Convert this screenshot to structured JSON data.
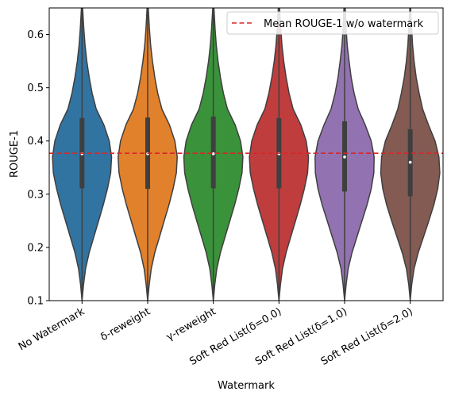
{
  "chart_data": {
    "type": "violin",
    "xlabel": "Watermark",
    "ylabel": "ROUGE-1",
    "ylim": [
      0.1,
      0.65
    ],
    "yticks": [
      0.1,
      0.2,
      0.3,
      0.4,
      0.5,
      0.6
    ],
    "ytick_labels": [
      "0.1",
      "0.2",
      "0.3",
      "0.4",
      "0.5",
      "0.6"
    ],
    "legend": {
      "placement": "top-right",
      "label": "Mean ROUGE-1 w/o watermark"
    },
    "reference_line": {
      "y": 0.377,
      "color": "#d62728",
      "style": "dashed"
    },
    "categories": [
      "No Watermark",
      "δ-reweight",
      "γ-reweight",
      "Soft Red List(δ=0.0)",
      "Soft Red List(δ=1.0)",
      "Soft Red List(δ=2.0)"
    ],
    "series": [
      {
        "label": "No Watermark",
        "color": "#3274a1",
        "median": 0.376,
        "q1": 0.311,
        "q3": 0.443,
        "min": 0.1,
        "max": 0.67,
        "density_y": [
          0.1,
          0.13,
          0.16,
          0.19,
          0.22,
          0.25,
          0.28,
          0.31,
          0.34,
          0.37,
          0.4,
          0.43,
          0.46,
          0.49,
          0.52,
          0.55,
          0.58,
          0.61,
          0.64,
          0.67
        ],
        "density_w": [
          0.0,
          0.05,
          0.12,
          0.24,
          0.4,
          0.56,
          0.72,
          0.86,
          0.97,
          1.0,
          0.92,
          0.74,
          0.48,
          0.34,
          0.24,
          0.16,
          0.1,
          0.06,
          0.03,
          0.0
        ]
      },
      {
        "label": "δ-reweight",
        "color": "#e1812c",
        "median": 0.376,
        "q1": 0.31,
        "q3": 0.444,
        "min": 0.1,
        "max": 0.67,
        "density_y": [
          0.1,
          0.13,
          0.16,
          0.19,
          0.22,
          0.25,
          0.28,
          0.31,
          0.34,
          0.37,
          0.4,
          0.43,
          0.46,
          0.49,
          0.52,
          0.55,
          0.58,
          0.61,
          0.64,
          0.67
        ],
        "density_w": [
          0.0,
          0.05,
          0.12,
          0.24,
          0.4,
          0.56,
          0.72,
          0.86,
          0.97,
          1.0,
          0.92,
          0.74,
          0.48,
          0.34,
          0.24,
          0.16,
          0.1,
          0.06,
          0.03,
          0.0
        ]
      },
      {
        "label": "γ-reweight",
        "color": "#3a923a",
        "median": 0.376,
        "q1": 0.311,
        "q3": 0.446,
        "min": 0.1,
        "max": 0.67,
        "density_y": [
          0.1,
          0.13,
          0.16,
          0.19,
          0.22,
          0.25,
          0.28,
          0.31,
          0.34,
          0.37,
          0.4,
          0.43,
          0.46,
          0.49,
          0.52,
          0.55,
          0.58,
          0.61,
          0.64,
          0.67
        ],
        "density_w": [
          0.0,
          0.05,
          0.12,
          0.24,
          0.4,
          0.56,
          0.72,
          0.86,
          0.97,
          1.0,
          0.92,
          0.74,
          0.48,
          0.34,
          0.24,
          0.16,
          0.1,
          0.06,
          0.03,
          0.0
        ]
      },
      {
        "label": "Soft Red List(δ=0.0)",
        "color": "#c03d3e",
        "median": 0.376,
        "q1": 0.311,
        "q3": 0.443,
        "min": 0.1,
        "max": 0.67,
        "density_y": [
          0.1,
          0.13,
          0.16,
          0.19,
          0.22,
          0.25,
          0.28,
          0.31,
          0.34,
          0.37,
          0.4,
          0.43,
          0.46,
          0.49,
          0.52,
          0.55,
          0.58,
          0.61,
          0.64,
          0.67
        ],
        "density_w": [
          0.0,
          0.05,
          0.12,
          0.24,
          0.4,
          0.56,
          0.72,
          0.86,
          0.97,
          1.0,
          0.92,
          0.74,
          0.48,
          0.34,
          0.24,
          0.16,
          0.1,
          0.06,
          0.03,
          0.0
        ]
      },
      {
        "label": "Soft Red List(δ=1.0)",
        "color": "#9372b2",
        "median": 0.37,
        "q1": 0.305,
        "q3": 0.437,
        "min": 0.1,
        "max": 0.67,
        "density_y": [
          0.1,
          0.13,
          0.16,
          0.19,
          0.22,
          0.25,
          0.28,
          0.31,
          0.34,
          0.37,
          0.4,
          0.43,
          0.46,
          0.49,
          0.52,
          0.55,
          0.58,
          0.61,
          0.64,
          0.67
        ],
        "density_w": [
          0.0,
          0.05,
          0.12,
          0.25,
          0.42,
          0.59,
          0.76,
          0.9,
          0.99,
          1.0,
          0.9,
          0.7,
          0.46,
          0.32,
          0.22,
          0.15,
          0.09,
          0.05,
          0.03,
          0.0
        ]
      },
      {
        "label": "Soft Red List(δ=2.0)",
        "color": "#845b53",
        "median": 0.36,
        "q1": 0.296,
        "q3": 0.422,
        "min": 0.1,
        "max": 0.67,
        "density_y": [
          0.1,
          0.13,
          0.16,
          0.19,
          0.22,
          0.25,
          0.28,
          0.31,
          0.34,
          0.37,
          0.4,
          0.43,
          0.46,
          0.49,
          0.52,
          0.55,
          0.58,
          0.61,
          0.64,
          0.67
        ],
        "density_w": [
          0.0,
          0.05,
          0.13,
          0.27,
          0.45,
          0.63,
          0.8,
          0.93,
          1.0,
          0.97,
          0.84,
          0.62,
          0.42,
          0.3,
          0.2,
          0.13,
          0.08,
          0.05,
          0.02,
          0.0
        ]
      }
    ]
  }
}
